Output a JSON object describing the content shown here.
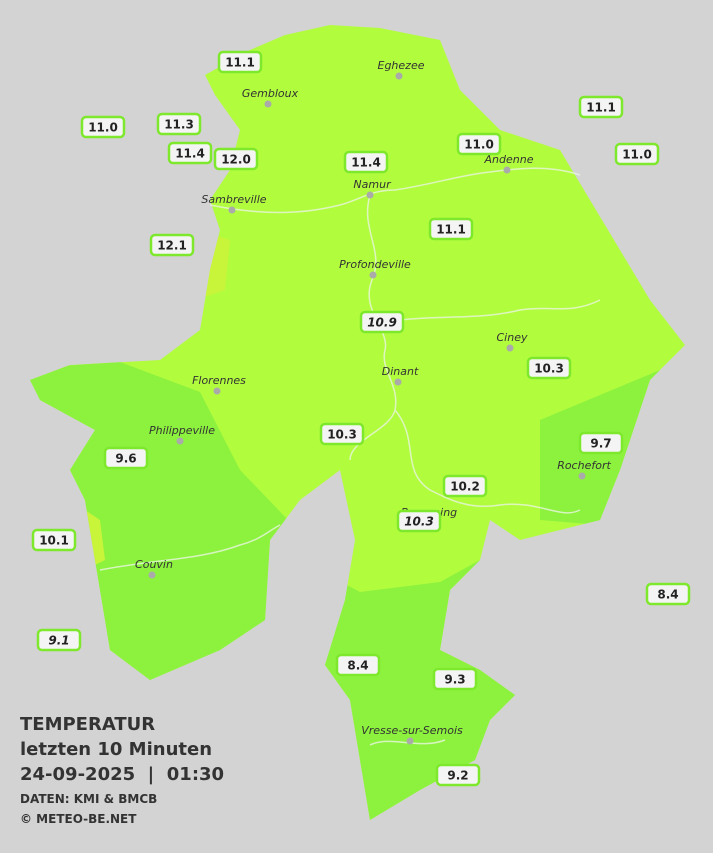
{
  "map": {
    "stations": [
      {
        "value": "11.1"
      },
      {
        "value": "11.0"
      },
      {
        "value": "11.3"
      },
      {
        "value": "11.4"
      },
      {
        "value": "12.0"
      },
      {
        "value": "11.4"
      },
      {
        "value": "11.0"
      },
      {
        "value": "11.1"
      },
      {
        "value": "11.0"
      },
      {
        "value": "12.1"
      },
      {
        "value": "11.1"
      },
      {
        "value": "10.9",
        "italic": true
      },
      {
        "value": "10.3"
      },
      {
        "value": "10.3"
      },
      {
        "value": "9.7"
      },
      {
        "value": "9.6"
      },
      {
        "value": "10.2"
      },
      {
        "value": "10.3",
        "italic": true
      },
      {
        "value": "10.1"
      },
      {
        "value": "8.4"
      },
      {
        "value": "9.1",
        "italic": true
      },
      {
        "value": "8.4"
      },
      {
        "value": "9.3"
      },
      {
        "value": "9.2"
      }
    ],
    "cities": [
      "Gembloux",
      "Eghezee",
      "Andenne",
      "Namur",
      "Sambreville",
      "Profondeville",
      "Ciney",
      "Dinant",
      "Florennes",
      "Philippeville",
      "Rochefort",
      "Beauraing",
      "Couvin",
      "Vresse-sur-Semois"
    ],
    "legend": {
      "title": "TEMPERATUR",
      "subtitle": "letzten 10 Minuten",
      "datetime": "24-09-2025  |  01:30",
      "source": "DATEN: KMI & BMCB",
      "credit": "© METEO-BE.NET"
    }
  }
}
